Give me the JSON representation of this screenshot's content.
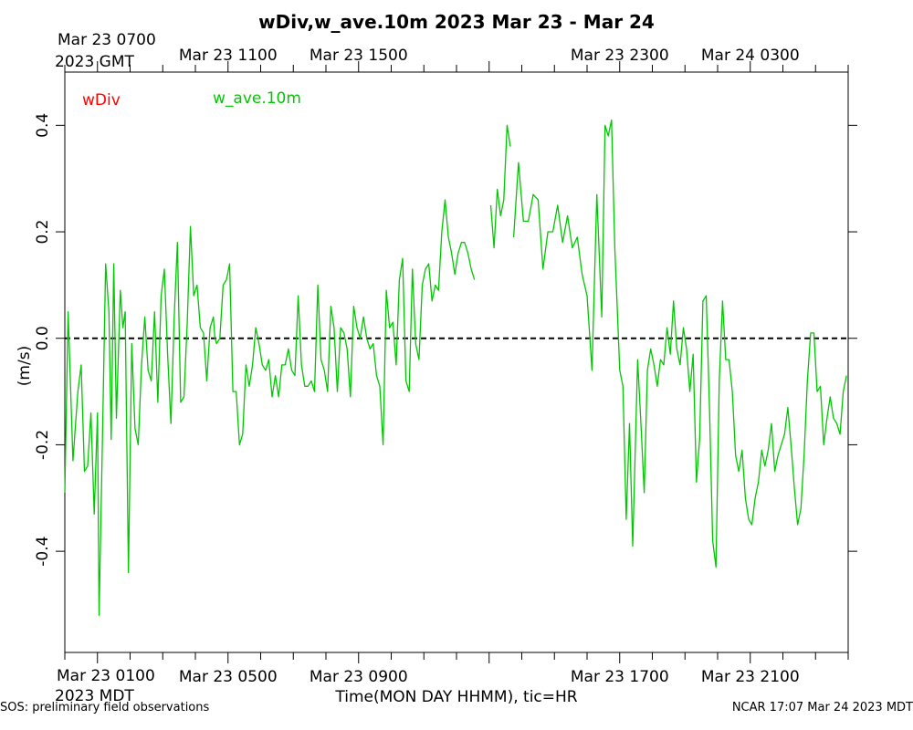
{
  "chart_data": {
    "type": "line",
    "title": "wDiv,w_ave.10m 2023 Mar 23 - Mar 24",
    "xlabel": "Time(MON DAY HHMM), tic=HR",
    "ylabel": "(m/s)",
    "x_units": "hours since Mar 23 0000 MDT",
    "xlim": [
      0,
      24
    ],
    "ylim": [
      -0.59,
      0.5
    ],
    "y_ticks": [
      -0.4,
      -0.2,
      0.0,
      0.2,
      0.4
    ],
    "y_tick_labels": [
      "-0.4",
      "-0.2",
      "0.0",
      "0.2",
      "0.4"
    ],
    "top_axis_label": [
      "Mar 23 0700",
      "2023 GMT"
    ],
    "bottom_axis_label": [
      "Mar 23 0100",
      "2023 MDT"
    ],
    "top_tick_labels": [
      {
        "x": 5,
        "label": "Mar 23 1100"
      },
      {
        "x": 9,
        "label": "Mar 23 1500"
      },
      {
        "x": 17,
        "label": "Mar 23 2300"
      },
      {
        "x": 21,
        "label": "Mar 24 0300"
      }
    ],
    "bottom_tick_labels": [
      {
        "x": 5,
        "label": "Mar 23 0500"
      },
      {
        "x": 9,
        "label": "Mar 23 0900"
      },
      {
        "x": 17,
        "label": "Mar 23 1700"
      },
      {
        "x": 21,
        "label": "Mar 23 2100"
      }
    ],
    "reference_line": {
      "y": 0.0,
      "style": "dashed"
    },
    "grid": false,
    "legend": [
      {
        "name": "wDiv",
        "color": "#ff0000"
      },
      {
        "name": "w_ave.10m",
        "color": "#00c800"
      }
    ],
    "series": [
      {
        "name": "w_ave.10m",
        "color": "#00c800",
        "segments": [
          [
            [
              0.0,
              -0.29
            ],
            [
              0.1,
              0.05
            ],
            [
              0.25,
              -0.23
            ],
            [
              0.4,
              -0.1
            ],
            [
              0.5,
              -0.05
            ],
            [
              0.6,
              -0.25
            ],
            [
              0.7,
              -0.24
            ],
            [
              0.8,
              -0.14
            ],
            [
              0.9,
              -0.33
            ],
            [
              1.0,
              -0.14
            ],
            [
              1.05,
              -0.52
            ],
            [
              1.15,
              -0.2
            ],
            [
              1.25,
              0.14
            ],
            [
              1.35,
              0.05
            ],
            [
              1.42,
              -0.19
            ],
            [
              1.5,
              0.14
            ],
            [
              1.58,
              -0.15
            ],
            [
              1.7,
              0.09
            ],
            [
              1.78,
              0.02
            ],
            [
              1.85,
              0.05
            ],
            [
              1.95,
              -0.44
            ],
            [
              2.05,
              -0.01
            ],
            [
              2.15,
              -0.17
            ],
            [
              2.25,
              -0.2
            ],
            [
              2.35,
              -0.05
            ],
            [
              2.45,
              0.04
            ],
            [
              2.55,
              -0.06
            ],
            [
              2.65,
              -0.08
            ],
            [
              2.75,
              0.05
            ],
            [
              2.85,
              -0.12
            ],
            [
              2.95,
              0.08
            ],
            [
              3.05,
              0.13
            ],
            [
              3.15,
              -0.03
            ],
            [
              3.25,
              -0.16
            ],
            [
              3.35,
              0.04
            ],
            [
              3.45,
              0.18
            ],
            [
              3.55,
              -0.12
            ],
            [
              3.65,
              -0.11
            ],
            [
              3.75,
              0.03
            ],
            [
              3.85,
              0.21
            ],
            [
              3.95,
              0.08
            ],
            [
              4.05,
              0.1
            ],
            [
              4.15,
              0.02
            ],
            [
              4.25,
              0.01
            ],
            [
              4.35,
              -0.08
            ],
            [
              4.45,
              0.02
            ],
            [
              4.55,
              0.04
            ],
            [
              4.6,
              0.0
            ],
            [
              4.65,
              -0.01
            ],
            [
              4.75,
              0.0
            ],
            [
              4.85,
              0.1
            ],
            [
              4.95,
              0.11
            ],
            [
              5.05,
              0.14
            ],
            [
              5.15,
              -0.1
            ],
            [
              5.25,
              -0.1
            ],
            [
              5.35,
              -0.2
            ],
            [
              5.45,
              -0.18
            ],
            [
              5.55,
              -0.05
            ],
            [
              5.65,
              -0.09
            ],
            [
              5.75,
              -0.05
            ],
            [
              5.85,
              0.02
            ],
            [
              5.95,
              -0.01
            ],
            [
              6.05,
              -0.05
            ],
            [
              6.15,
              -0.06
            ],
            [
              6.25,
              -0.04
            ],
            [
              6.35,
              -0.11
            ],
            [
              6.45,
              -0.07
            ],
            [
              6.55,
              -0.11
            ],
            [
              6.65,
              -0.05
            ],
            [
              6.75,
              -0.05
            ],
            [
              6.85,
              -0.02
            ],
            [
              6.95,
              -0.06
            ],
            [
              7.05,
              -0.07
            ],
            [
              7.15,
              0.08
            ],
            [
              7.25,
              -0.05
            ],
            [
              7.35,
              -0.09
            ],
            [
              7.45,
              -0.09
            ],
            [
              7.55,
              -0.08
            ],
            [
              7.65,
              -0.1
            ],
            [
              7.75,
              0.1
            ],
            [
              7.85,
              -0.04
            ],
            [
              7.95,
              -0.06
            ],
            [
              8.05,
              -0.1
            ],
            [
              8.15,
              0.06
            ],
            [
              8.25,
              0.02
            ],
            [
              8.35,
              -0.1
            ],
            [
              8.45,
              0.02
            ],
            [
              8.55,
              0.01
            ],
            [
              8.65,
              -0.02
            ],
            [
              8.75,
              -0.11
            ],
            [
              8.85,
              0.06
            ],
            [
              8.95,
              0.02
            ],
            [
              9.05,
              0.0
            ],
            [
              9.15,
              0.04
            ],
            [
              9.25,
              0.0
            ],
            [
              9.35,
              -0.02
            ],
            [
              9.45,
              -0.01
            ],
            [
              9.55,
              -0.07
            ],
            [
              9.65,
              -0.09
            ],
            [
              9.75,
              -0.2
            ],
            [
              9.85,
              0.09
            ],
            [
              9.95,
              0.02
            ],
            [
              10.05,
              0.03
            ],
            [
              10.15,
              -0.05
            ],
            [
              10.25,
              0.11
            ],
            [
              10.35,
              0.15
            ],
            [
              10.45,
              -0.08
            ],
            [
              10.55,
              -0.1
            ],
            [
              10.65,
              0.13
            ],
            [
              10.75,
              -0.01
            ],
            [
              10.85,
              -0.04
            ],
            [
              10.95,
              0.1
            ],
            [
              11.05,
              0.13
            ],
            [
              11.15,
              0.14
            ],
            [
              11.25,
              0.07
            ],
            [
              11.35,
              0.1
            ],
            [
              11.45,
              0.09
            ],
            [
              11.55,
              0.2
            ],
            [
              11.65,
              0.26
            ],
            [
              11.75,
              0.19
            ],
            [
              11.85,
              0.16
            ],
            [
              11.95,
              0.12
            ],
            [
              12.05,
              0.16
            ],
            [
              12.15,
              0.18
            ],
            [
              12.25,
              0.18
            ],
            [
              12.35,
              0.16
            ],
            [
              12.45,
              0.13
            ],
            [
              12.55,
              0.11
            ]
          ],
          [
            [
              13.05,
              0.25
            ],
            [
              13.15,
              0.17
            ],
            [
              13.25,
              0.28
            ],
            [
              13.35,
              0.23
            ],
            [
              13.45,
              0.26
            ],
            [
              13.55,
              0.4
            ],
            [
              13.65,
              0.36
            ]
          ],
          [
            [
              13.75,
              0.19
            ],
            [
              13.9,
              0.33
            ],
            [
              14.05,
              0.22
            ],
            [
              14.2,
              0.22
            ],
            [
              14.35,
              0.27
            ],
            [
              14.5,
              0.26
            ],
            [
              14.65,
              0.13
            ],
            [
              14.8,
              0.2
            ],
            [
              14.95,
              0.2
            ],
            [
              15.1,
              0.25
            ],
            [
              15.25,
              0.18
            ],
            [
              15.4,
              0.23
            ],
            [
              15.55,
              0.17
            ],
            [
              15.7,
              0.19
            ],
            [
              15.85,
              0.12
            ],
            [
              16.0,
              0.08
            ],
            [
              16.15,
              -0.06
            ],
            [
              16.3,
              0.27
            ],
            [
              16.45,
              0.04
            ],
            [
              16.55,
              0.4
            ],
            [
              16.65,
              0.38
            ],
            [
              16.75,
              0.41
            ],
            [
              16.85,
              0.17
            ],
            [
              17.0,
              -0.06
            ],
            [
              17.1,
              -0.09
            ],
            [
              17.2,
              -0.34
            ],
            [
              17.3,
              -0.16
            ],
            [
              17.4,
              -0.39
            ],
            [
              17.55,
              -0.04
            ],
            [
              17.65,
              -0.16
            ],
            [
              17.75,
              -0.29
            ],
            [
              17.85,
              -0.06
            ],
            [
              17.95,
              -0.02
            ],
            [
              18.05,
              -0.05
            ],
            [
              18.15,
              -0.09
            ],
            [
              18.25,
              -0.04
            ],
            [
              18.35,
              -0.05
            ],
            [
              18.45,
              0.02
            ],
            [
              18.55,
              -0.03
            ],
            [
              18.65,
              0.07
            ],
            [
              18.75,
              -0.02
            ],
            [
              18.85,
              -0.05
            ],
            [
              18.95,
              0.02
            ],
            [
              19.05,
              -0.02
            ],
            [
              19.15,
              -0.1
            ],
            [
              19.25,
              -0.03
            ],
            [
              19.35,
              -0.27
            ],
            [
              19.45,
              -0.19
            ],
            [
              19.55,
              0.07
            ],
            [
              19.65,
              0.08
            ],
            [
              19.75,
              -0.13
            ],
            [
              19.85,
              -0.38
            ],
            [
              19.95,
              -0.43
            ],
            [
              20.05,
              -0.08
            ],
            [
              20.15,
              0.07
            ],
            [
              20.25,
              -0.04
            ],
            [
              20.35,
              -0.04
            ],
            [
              20.45,
              -0.1
            ],
            [
              20.55,
              -0.22
            ],
            [
              20.65,
              -0.25
            ],
            [
              20.75,
              -0.21
            ],
            [
              20.85,
              -0.3
            ],
            [
              20.95,
              -0.34
            ],
            [
              21.05,
              -0.35
            ],
            [
              21.15,
              -0.3
            ],
            [
              21.25,
              -0.27
            ],
            [
              21.35,
              -0.21
            ],
            [
              21.45,
              -0.24
            ],
            [
              21.55,
              -0.21
            ],
            [
              21.65,
              -0.16
            ],
            [
              21.75,
              -0.25
            ],
            [
              21.85,
              -0.22
            ],
            [
              21.95,
              -0.2
            ],
            [
              22.05,
              -0.18
            ],
            [
              22.15,
              -0.13
            ],
            [
              22.25,
              -0.2
            ],
            [
              22.35,
              -0.28
            ],
            [
              22.45,
              -0.35
            ],
            [
              22.55,
              -0.32
            ],
            [
              22.65,
              -0.22
            ],
            [
              22.75,
              -0.08
            ],
            [
              22.85,
              0.01
            ],
            [
              22.95,
              0.01
            ],
            [
              23.05,
              -0.1
            ],
            [
              23.15,
              -0.09
            ],
            [
              23.25,
              -0.2
            ],
            [
              23.35,
              -0.15
            ],
            [
              23.45,
              -0.11
            ],
            [
              23.55,
              -0.15
            ],
            [
              23.65,
              -0.16
            ],
            [
              23.75,
              -0.18
            ],
            [
              23.85,
              -0.1
            ],
            [
              23.95,
              -0.07
            ]
          ]
        ]
      }
    ]
  },
  "footer": {
    "left": "SOS: preliminary field observations",
    "right": "NCAR 17:07 Mar 24 2023 MDT"
  }
}
